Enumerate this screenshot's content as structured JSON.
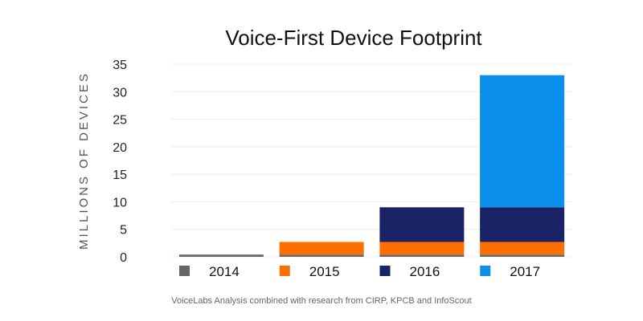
{
  "chart_data": {
    "type": "bar",
    "stacked": true,
    "title": "Voice-First Device Footprint",
    "ylabel": "MILLIONS OF DEVICES",
    "xlabel": "",
    "ylim": [
      0,
      35
    ],
    "yticks": [
      "0",
      "5",
      "10",
      "15",
      "20",
      "25",
      "30",
      "35"
    ],
    "categories": [
      "2014",
      "2015",
      "2016",
      "2017"
    ],
    "series": [
      {
        "name": "2014",
        "color": "#666666",
        "values": [
          0.4,
          0.4,
          0.4,
          0.4
        ]
      },
      {
        "name": "2015",
        "color": "#FF6F00",
        "values": [
          0,
          2.3,
          2.3,
          2.3
        ]
      },
      {
        "name": "2016",
        "color": "#1A2366",
        "values": [
          0,
          0,
          6.3,
          6.3
        ]
      },
      {
        "name": "2017",
        "color": "#0A8FEB",
        "values": [
          0,
          0,
          0,
          24
        ]
      }
    ],
    "grid": true,
    "legend_position": "bottom",
    "source": "VoiceLabs Analysis combined with research from CIRP, KPCB and InfoScout"
  }
}
